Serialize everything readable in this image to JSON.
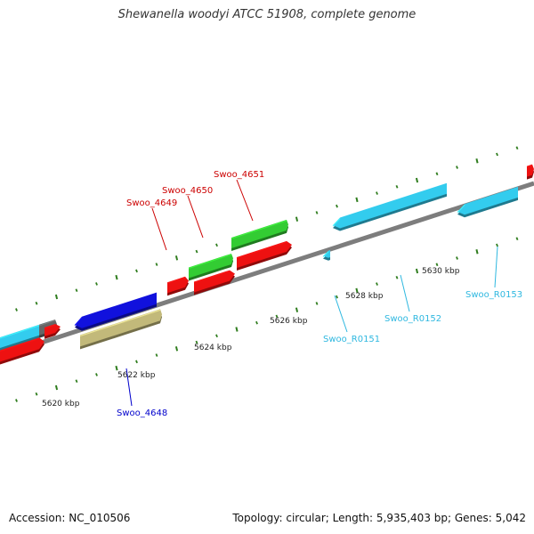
{
  "title": "Shewanella woodyi ATCC 51908, complete genome",
  "footer": {
    "accession": "Accession: NC_010506",
    "summary": "Topology: circular; Length: 5,935,403 bp; Genes: 5,042"
  },
  "colors": {
    "backbone": "#8a8a8a",
    "tick": "#2f7d1e",
    "red": "#ee1111",
    "green": "#33cc33",
    "blue": "#1111dd",
    "khaki": "#c2b97a",
    "cyan": "#33ccee",
    "gray": "#666666"
  },
  "ticks": [
    {
      "label": "5620 kbp"
    },
    {
      "label": "5622 kbp"
    },
    {
      "label": "5624 kbp"
    },
    {
      "label": "5626 kbp"
    },
    {
      "label": "5628 kbp"
    },
    {
      "label": "5630 kbp"
    }
  ],
  "gene_labels": [
    {
      "text": "Swoo_4649",
      "color": "#cc0000"
    },
    {
      "text": "Swoo_4650",
      "color": "#cc0000"
    },
    {
      "text": "Swoo_4651",
      "color": "#cc0000"
    },
    {
      "text": "Swoo_4648",
      "color": "#0000cc"
    },
    {
      "text": "Swoo_R0151",
      "color": "#2fb8e0"
    },
    {
      "text": "Swoo_R0152",
      "color": "#2fb8e0"
    },
    {
      "text": "Swoo_R0153",
      "color": "#2fb8e0"
    }
  ]
}
